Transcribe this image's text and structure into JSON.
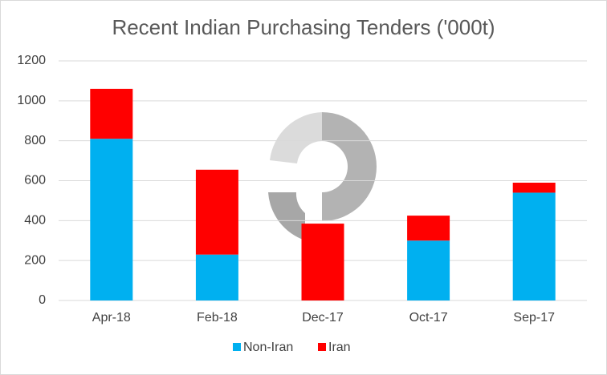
{
  "chart_data": {
    "type": "stacked_bar",
    "title": "Recent Indian Purchasing Tenders ('000t)",
    "categories": [
      "Apr-18",
      "Feb-18",
      "Dec-17",
      "Oct-17",
      "Sep-17"
    ],
    "series": [
      {
        "name": "Non-Iran",
        "color": "#00b0f0",
        "values": [
          810,
          230,
          0,
          300,
          540
        ]
      },
      {
        "name": "Iran",
        "color": "#ff0000",
        "values": [
          250,
          425,
          385,
          125,
          50
        ]
      }
    ],
    "ylim": [
      0,
      1200
    ],
    "yticks": [
      0,
      200,
      400,
      600,
      800,
      1000,
      1200
    ],
    "grid": true,
    "legend": "bottom"
  }
}
